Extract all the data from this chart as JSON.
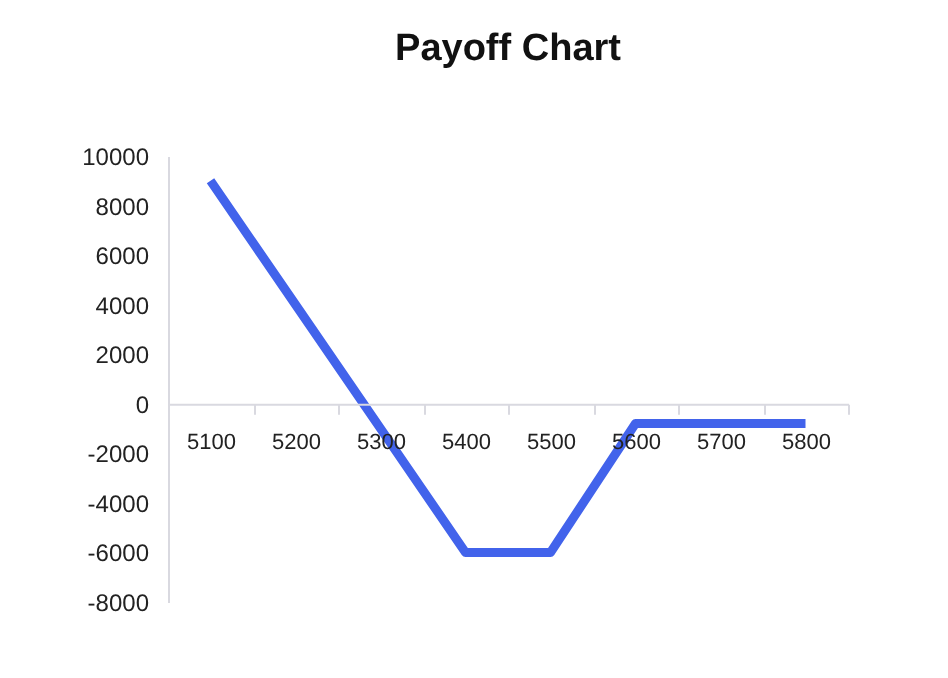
{
  "chart_data": {
    "type": "line",
    "title": "Payoff Chart",
    "categories": [
      "5100",
      "5200",
      "5300",
      "5400",
      "5500",
      "5600",
      "5700",
      "5800"
    ],
    "series": [
      {
        "color": "#4263eb",
        "values": [
          9000,
          4000,
          -1000,
          -6000,
          -6000,
          -800,
          -800,
          -800
        ]
      }
    ],
    "ylim": [
      -8000,
      10000
    ],
    "yticks": [
      -8000,
      -6000,
      -4000,
      -2000,
      0,
      2000,
      4000,
      6000,
      8000,
      10000
    ],
    "grid": false,
    "legend": false,
    "marker": "none",
    "line_style": "solid"
  }
}
